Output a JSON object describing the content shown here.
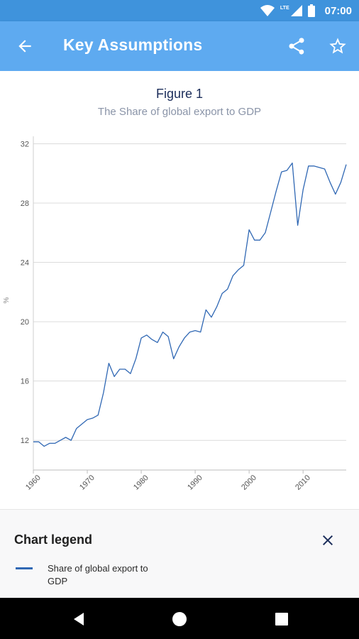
{
  "status_bar": {
    "time": "07:00",
    "network_label": "LTE"
  },
  "app_bar": {
    "title": "Key Assumptions"
  },
  "figure": {
    "title": "Figure 1",
    "subtitle": "The Share of global export to GDP"
  },
  "legend": {
    "title": "Chart legend",
    "items": [
      {
        "label": "Share of global export to GDP",
        "color": "#3068b4"
      }
    ]
  },
  "colors": {
    "status_bar": "#3f93dc",
    "app_bar": "#5eaaf0",
    "series": "#3068b4"
  },
  "chart_data": {
    "type": "line",
    "title": "Figure 1",
    "subtitle": "The Share of global export to GDP",
    "xlabel": "",
    "ylabel": "%",
    "xlim": [
      1960,
      2018
    ],
    "ylim": [
      10,
      32.5
    ],
    "yticks": [
      12,
      16,
      20,
      24,
      28,
      32
    ],
    "xticks": [
      1960,
      1970,
      1980,
      1990,
      2000,
      2010
    ],
    "grid": true,
    "legend_position": "bottom",
    "series": [
      {
        "name": "Share of global export to GDP",
        "x": [
          1960,
          1961,
          1962,
          1963,
          1964,
          1965,
          1966,
          1967,
          1968,
          1969,
          1970,
          1971,
          1972,
          1973,
          1974,
          1975,
          1976,
          1977,
          1978,
          1979,
          1980,
          1981,
          1982,
          1983,
          1984,
          1985,
          1986,
          1987,
          1988,
          1989,
          1990,
          1991,
          1992,
          1993,
          1994,
          1995,
          1996,
          1997,
          1998,
          1999,
          2000,
          2001,
          2002,
          2003,
          2004,
          2005,
          2006,
          2007,
          2008,
          2009,
          2010,
          2011,
          2012,
          2013,
          2014,
          2015,
          2016,
          2017,
          2018
        ],
        "values": [
          11.9,
          11.9,
          11.6,
          11.8,
          11.8,
          12.0,
          12.2,
          12.0,
          12.8,
          13.1,
          13.4,
          13.5,
          13.7,
          15.2,
          17.2,
          16.3,
          16.8,
          16.8,
          16.5,
          17.5,
          18.9,
          19.1,
          18.8,
          18.6,
          19.3,
          19.0,
          17.5,
          18.3,
          18.9,
          19.3,
          19.4,
          19.3,
          20.8,
          20.3,
          21.0,
          21.9,
          22.2,
          23.1,
          23.5,
          23.8,
          26.2,
          25.5,
          25.5,
          26.0,
          27.4,
          28.8,
          30.1,
          30.2,
          30.7,
          26.5,
          28.9,
          30.5,
          30.5,
          30.4,
          30.3,
          29.4,
          28.6,
          29.4,
          30.6
        ]
      }
    ]
  }
}
